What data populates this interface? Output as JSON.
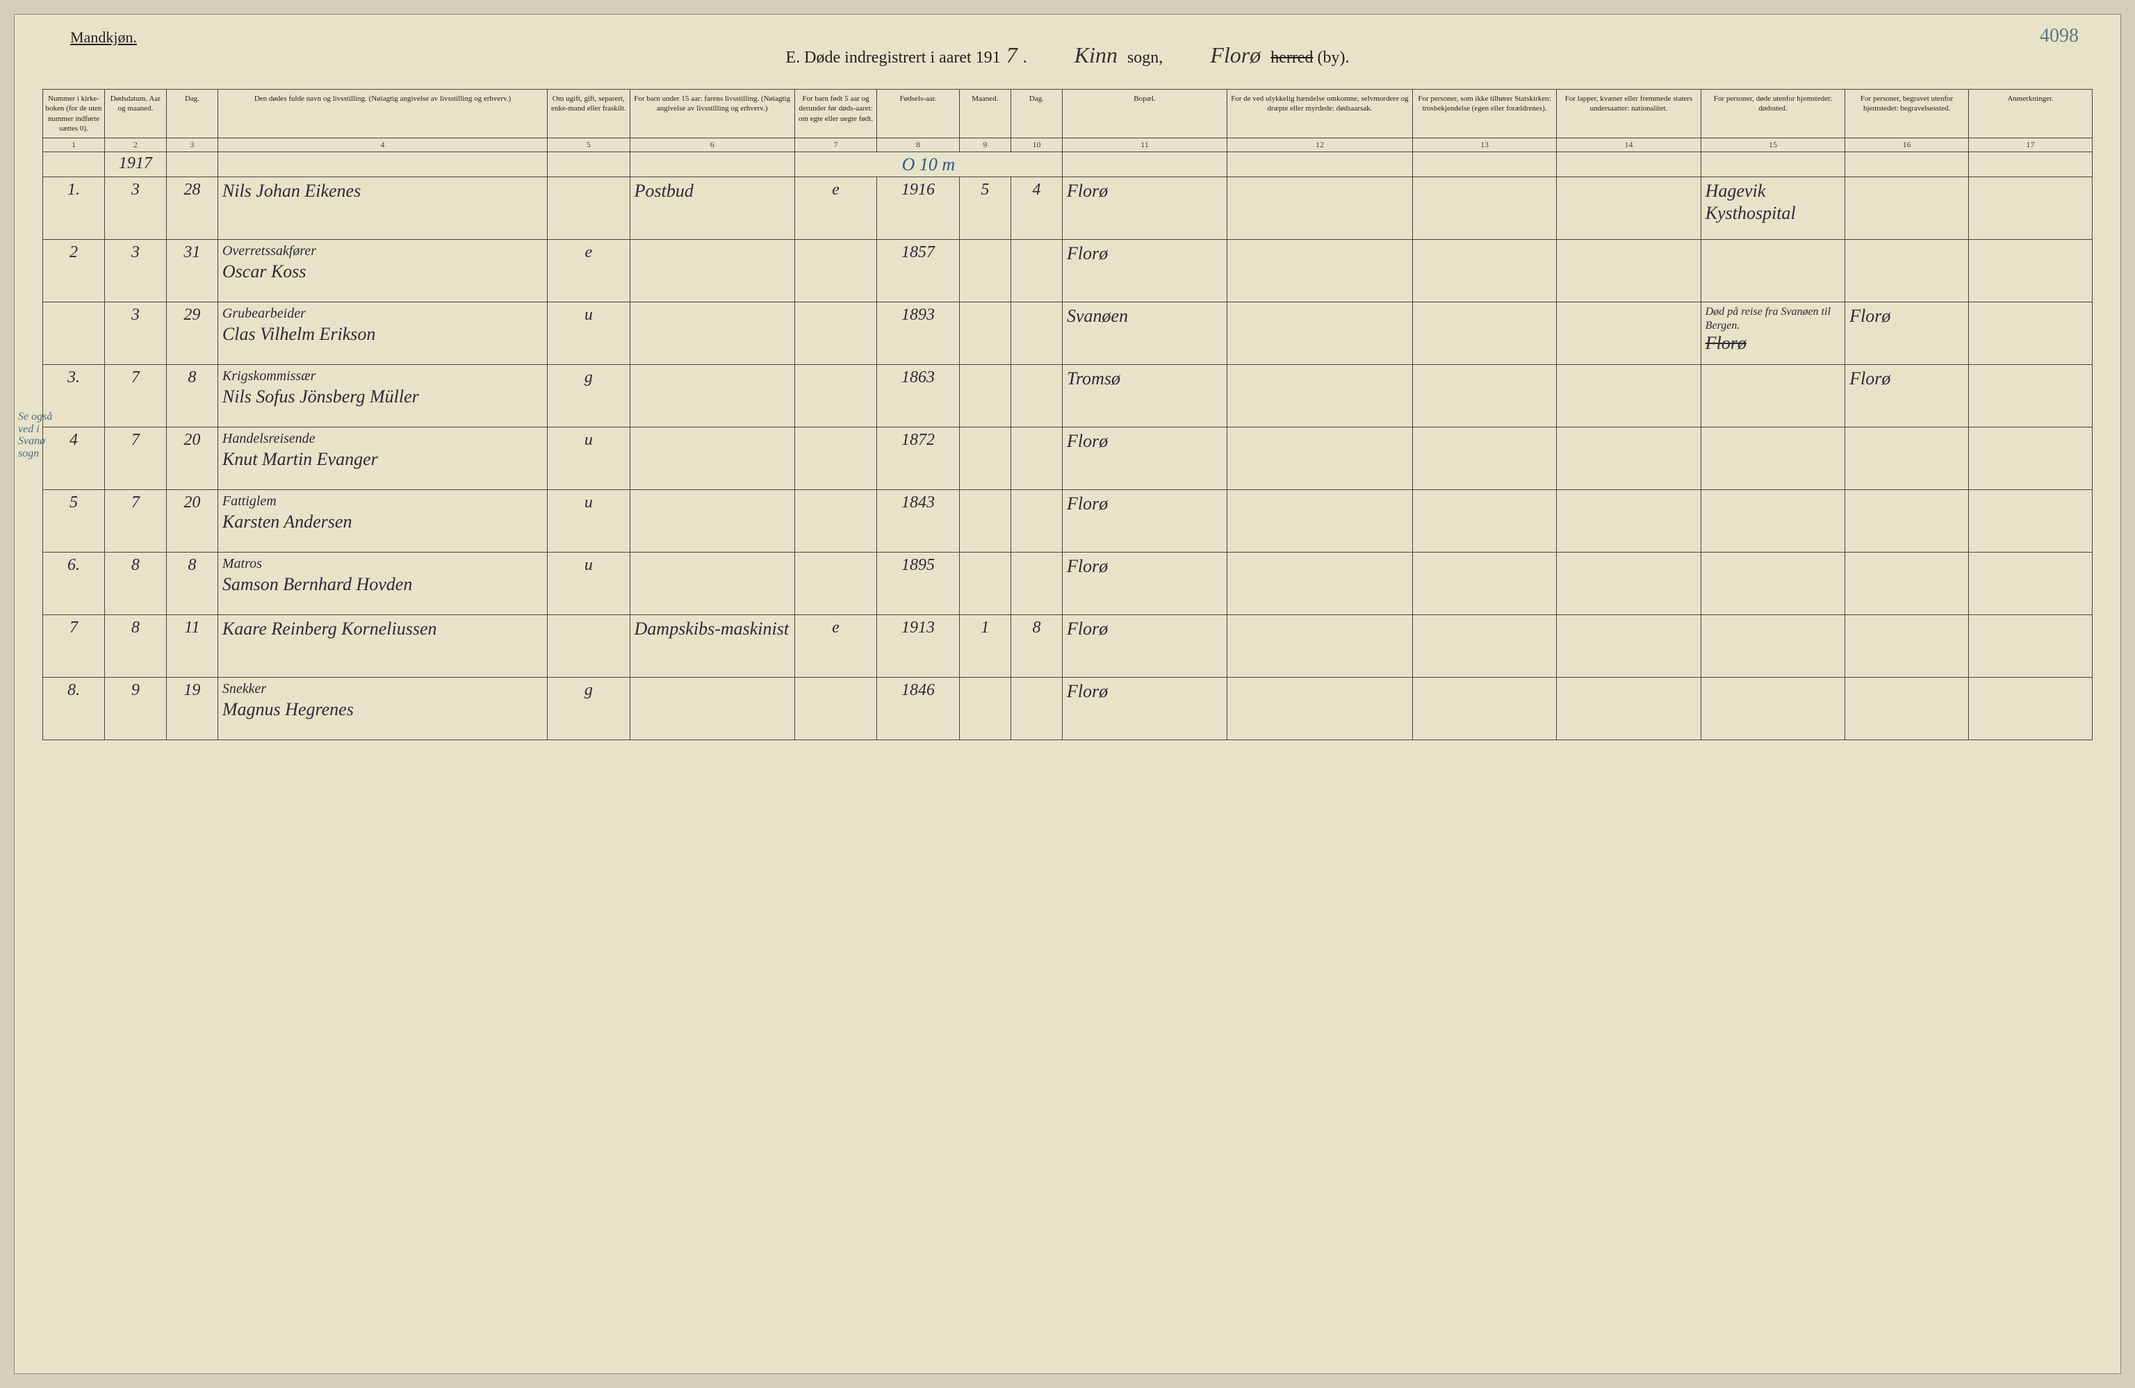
{
  "header": {
    "gender_label": "Mandkjøn.",
    "title_prefix": "E.   Døde indregistrert i aaret 191",
    "year_suffix": "7",
    "parish_written": "Kinn",
    "parish_label": "sogn,",
    "district_written": "Florø",
    "district_label_struck": "herred",
    "district_label": "(by).",
    "page_number": "4098"
  },
  "columns": [
    {
      "num": "1",
      "label": "Nummer i kirke-boken (for de uten nummer indførte sættes 0).",
      "w": "3%"
    },
    {
      "num": "2",
      "label": "Dødsdatum. Aar og maaned.",
      "w": "3%"
    },
    {
      "num": "3",
      "label": "Dag.",
      "w": "2.5%"
    },
    {
      "num": "4",
      "label": "Den dødes fulde navn og livsstilling. (Nøiagtig angivelse av livsstilling og erhverv.)",
      "w": "16%"
    },
    {
      "num": "5",
      "label": "Om ugift, gift, separert, enke-mand eller fraskilt.",
      "w": "4%"
    },
    {
      "num": "6",
      "label": "For barn under 15 aar: farens livsstilling. (Nøiagtig angivelse av livsstilling og erhverv.)",
      "w": "8%"
    },
    {
      "num": "7",
      "label": "For barn født 5 aar og derunder før døds-aaret: om egte eller uegte født.",
      "w": "4%"
    },
    {
      "num": "8",
      "label": "Fødsels-aar.",
      "w": "4%"
    },
    {
      "num": "9",
      "label": "Maaned.",
      "w": "2.5%"
    },
    {
      "num": "10",
      "label": "Dag.",
      "w": "2.5%"
    },
    {
      "num": "11",
      "label": "Bopæl.",
      "w": "8%"
    },
    {
      "num": "12",
      "label": "For de ved ulykkelig hændelse omkomne, selvmordere og dræpte eller myrdede: dødsaarsak.",
      "w": "9%"
    },
    {
      "num": "13",
      "label": "For personer, som ikke tilhører Statskirken: trosbekjendelse (egen eller forældrenes).",
      "w": "7%"
    },
    {
      "num": "14",
      "label": "For lapper, kvæner eller fremmede staters undersaatter: nationalitet.",
      "w": "7%"
    },
    {
      "num": "15",
      "label": "For personer, døde utenfor hjemstedet: dødssted.",
      "w": "7%"
    },
    {
      "num": "16",
      "label": "For personer, begravet utenfor hjemstedet: begravelsessted.",
      "w": "6%"
    },
    {
      "num": "17",
      "label": "Anmerkninger.",
      "w": "6%"
    }
  ],
  "year_row": "1917",
  "blue_annotation": "O 10 m",
  "rows": [
    {
      "n": "1.",
      "m": "3",
      "d": "28",
      "name": "Nils Johan Eikenes",
      "occ": "",
      "status": "",
      "father": "Postbud",
      "legit": "e",
      "byear": "1916",
      "bm": "5",
      "bd": "4",
      "place": "Florø",
      "c12": "",
      "c13": "",
      "c14": "",
      "death": "Hagevik Kysthospital",
      "burial": "",
      "notes": ""
    },
    {
      "n": "2",
      "m": "3",
      "d": "31",
      "name": "Oscar Koss",
      "occ": "Overretssakfører",
      "status": "e",
      "father": "",
      "legit": "",
      "byear": "1857",
      "bm": "",
      "bd": "",
      "place": "Florø",
      "c12": "",
      "c13": "",
      "c14": "",
      "death": "",
      "burial": "",
      "notes": ""
    },
    {
      "n": "",
      "m": "3",
      "d": "29",
      "name": "Clas Vilhelm Erikson",
      "occ": "Grubearbeider",
      "status": "u",
      "father": "",
      "legit": "",
      "byear": "1893",
      "bm": "",
      "bd": "",
      "place": "Svanøen",
      "c12": "",
      "c13": "",
      "c14": "",
      "death": "Død på reise fra Svanøen til Bergen. Florø",
      "burial": "Florø",
      "notes": "",
      "margin": "Se også ved i Svanø sogn",
      "death_struck": true
    },
    {
      "n": "3.",
      "m": "7",
      "d": "8",
      "name": "Nils Sofus Jönsberg Müller",
      "occ": "Krigskommissær",
      "status": "g",
      "father": "",
      "legit": "",
      "byear": "1863",
      "bm": "",
      "bd": "",
      "place": "Tromsø",
      "c12": "",
      "c13": "",
      "c14": "",
      "death": "",
      "burial": "Florø",
      "notes": ""
    },
    {
      "n": "4",
      "m": "7",
      "d": "20",
      "name": "Knut Martin Evanger",
      "occ": "Handelsreisende",
      "status": "u",
      "father": "",
      "legit": "",
      "byear": "1872",
      "bm": "",
      "bd": "",
      "place": "Florø",
      "c12": "",
      "c13": "",
      "c14": "",
      "death": "",
      "burial": "",
      "notes": ""
    },
    {
      "n": "5",
      "m": "7",
      "d": "20",
      "name": "Karsten Andersen",
      "occ": "Fattiglem",
      "status": "u",
      "father": "",
      "legit": "",
      "byear": "1843",
      "bm": "",
      "bd": "",
      "place": "Florø",
      "c12": "",
      "c13": "",
      "c14": "",
      "death": "",
      "burial": "",
      "notes": ""
    },
    {
      "n": "6.",
      "m": "8",
      "d": "8",
      "name": "Samson Bernhard Hovden",
      "occ": "Matros",
      "status": "u",
      "father": "",
      "legit": "",
      "byear": "1895",
      "bm": "",
      "bd": "",
      "place": "Florø",
      "c12": "",
      "c13": "",
      "c14": "",
      "death": "",
      "burial": "",
      "notes": ""
    },
    {
      "n": "7",
      "m": "8",
      "d": "11",
      "name": "Kaare Reinberg Korneliussen",
      "occ": "",
      "status": "",
      "father": "Dampskibs-maskinist",
      "legit": "e",
      "byear": "1913",
      "bm": "1",
      "bd": "8",
      "place": "Florø",
      "c12": "",
      "c13": "",
      "c14": "",
      "death": "",
      "burial": "",
      "notes": ""
    },
    {
      "n": "8.",
      "m": "9",
      "d": "19",
      "name": "Magnus Hegrenes",
      "occ": "Snekker",
      "status": "g",
      "father": "",
      "legit": "",
      "byear": "1846",
      "bm": "",
      "bd": "",
      "place": "Florø",
      "c12": "",
      "c13": "",
      "c14": "",
      "death": "",
      "burial": "",
      "notes": ""
    }
  ],
  "colors": {
    "page_bg": "#e8e3c8",
    "outer_bg": "#d4d0b8",
    "border": "#444444",
    "ink": "#2a2a3a",
    "blue_ink": "#2a5a8a"
  }
}
